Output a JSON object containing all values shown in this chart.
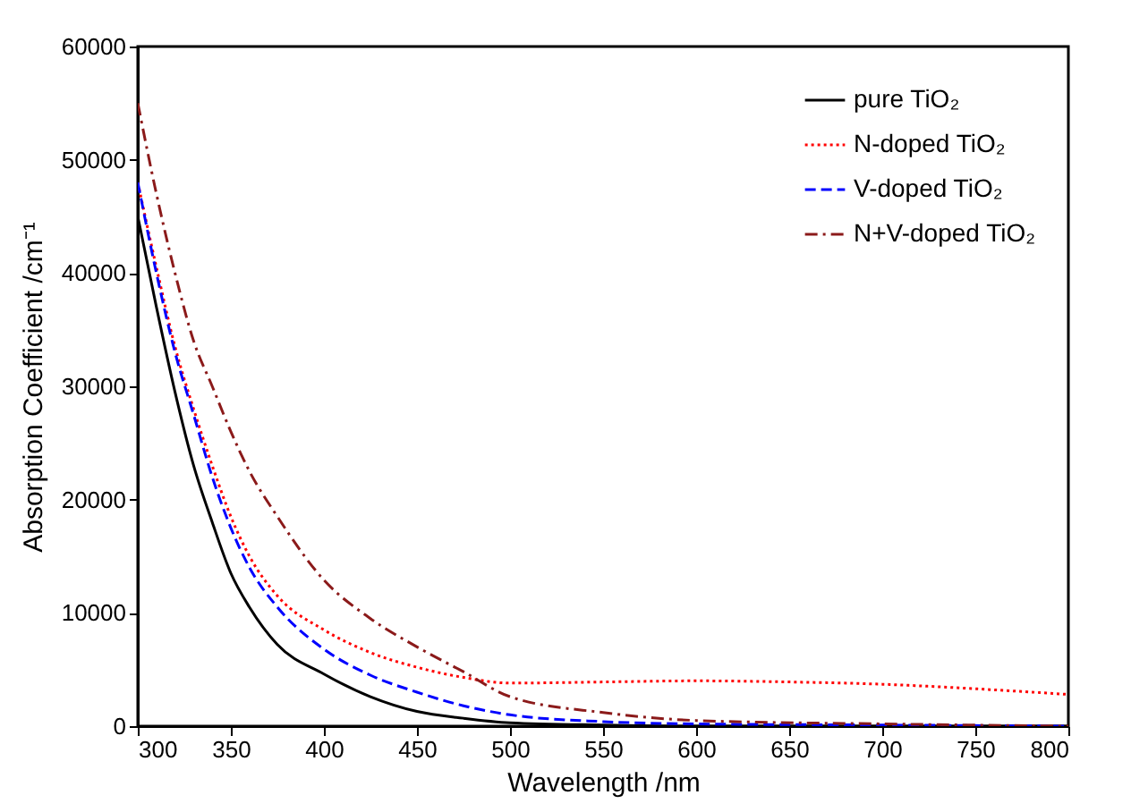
{
  "chart_data": {
    "type": "line",
    "xlabel": "Wavelength /nm",
    "ylabel": "Absorption Coefficient /cm⁻¹",
    "xlim": [
      300,
      800
    ],
    "xticks": [
      300,
      350,
      400,
      450,
      500,
      550,
      600,
      650,
      700,
      750,
      800
    ],
    "ylim": [
      0,
      60000
    ],
    "yticks": [
      0,
      10000,
      20000,
      30000,
      40000,
      50000,
      60000
    ],
    "grid": false,
    "legend": "top right",
    "marker": "none",
    "series": [
      {
        "name": "pure TiO₂",
        "color": "#000000",
        "line_style": "solid",
        "x": [
          300,
          310,
          320,
          330,
          340,
          350,
          360,
          375,
          400,
          425,
          450,
          475,
          500,
          550,
          600,
          700,
          800
        ],
        "values": [
          45000,
          37000,
          29500,
          23000,
          18000,
          13500,
          10500,
          7200,
          4600,
          2600,
          1300,
          700,
          300,
          100,
          0,
          0,
          0
        ]
      },
      {
        "name": "N-doped TiO₂",
        "color": "#ff0000",
        "line_style": "dotted",
        "x": [
          300,
          310,
          320,
          330,
          340,
          350,
          360,
          375,
          400,
          425,
          450,
          475,
          500,
          550,
          600,
          650,
          700,
          750,
          800
        ],
        "values": [
          48000,
          40500,
          33500,
          28000,
          23000,
          18500,
          15000,
          11500,
          8500,
          6500,
          5200,
          4300,
          3800,
          3900,
          4000,
          3900,
          3700,
          3300,
          2800
        ]
      },
      {
        "name": "V-doped TiO₂",
        "color": "#0000ff",
        "line_style": "dashed",
        "x": [
          300,
          310,
          320,
          330,
          340,
          350,
          360,
          375,
          400,
          425,
          450,
          475,
          500,
          550,
          600,
          700,
          800
        ],
        "values": [
          48000,
          40000,
          33000,
          27500,
          22000,
          17500,
          14000,
          10500,
          6800,
          4500,
          3000,
          1800,
          1000,
          400,
          200,
          100,
          0
        ]
      },
      {
        "name": "N+V-doped TiO₂",
        "color": "#8b1a1a",
        "line_style": "dashdot",
        "x": [
          300,
          310,
          320,
          330,
          340,
          350,
          360,
          375,
          400,
          425,
          450,
          475,
          500,
          550,
          600,
          700,
          800
        ],
        "values": [
          55000,
          47000,
          40000,
          34000,
          30000,
          26000,
          22500,
          18500,
          12900,
          9500,
          7000,
          4800,
          2600,
          1200,
          500,
          200,
          0
        ]
      }
    ]
  }
}
